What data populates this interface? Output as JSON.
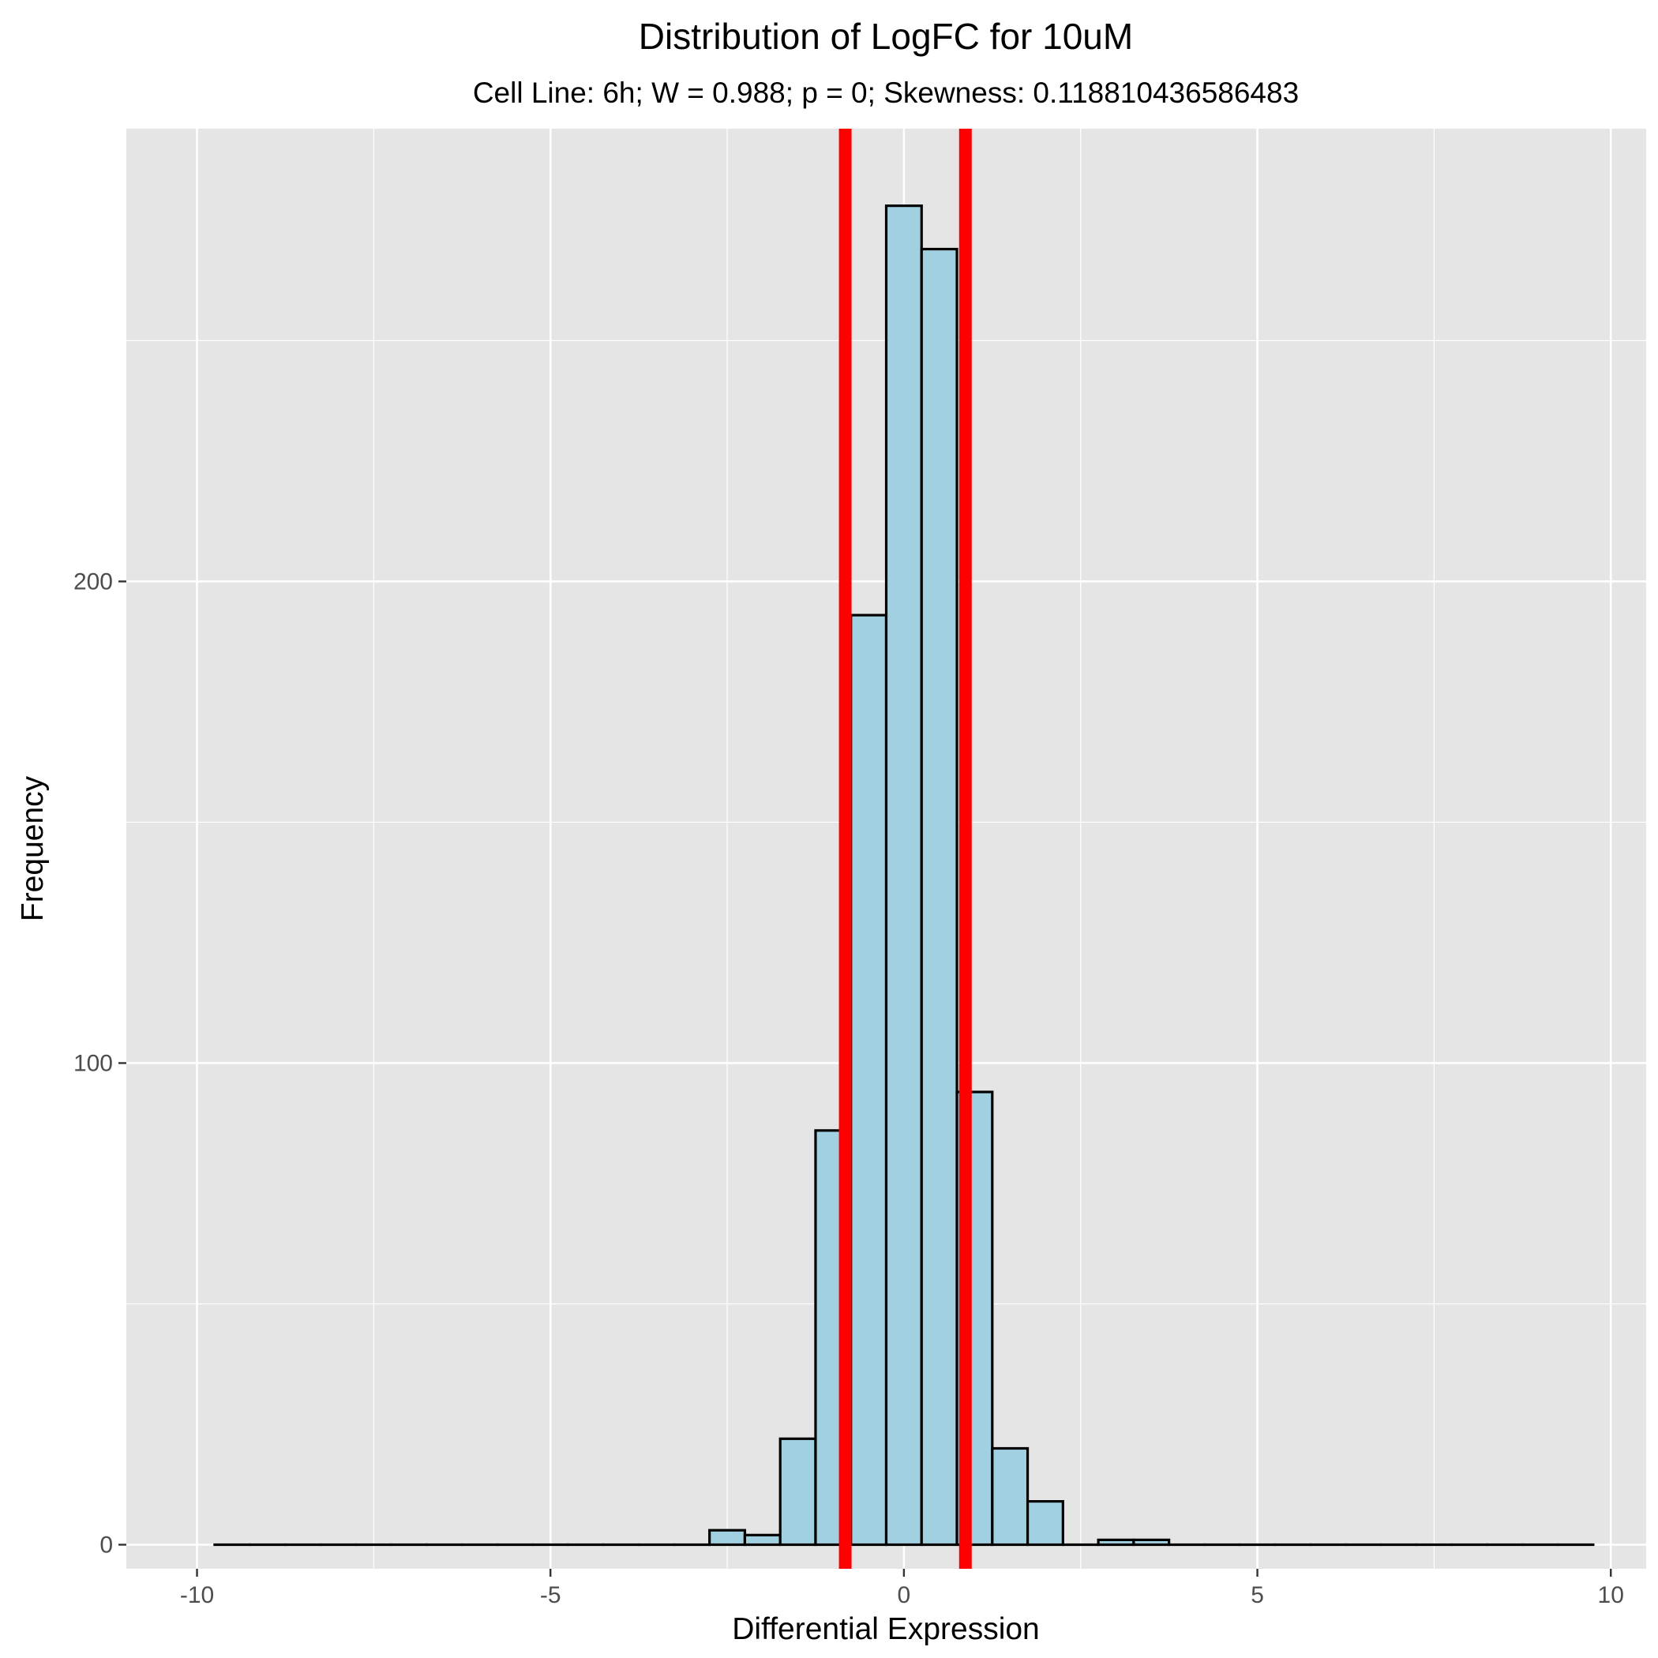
{
  "chart_data": {
    "type": "bar",
    "title": "Distribution of LogFC for 10uM",
    "subtitle": "Cell Line: 6h; W = 0.988; p = 0; Skewness: 0.118810436586483",
    "xlabel": "Differential Expression",
    "ylabel": "Frequency",
    "xlim": [
      -11,
      10.5
    ],
    "ylim": [
      -5,
      294
    ],
    "x_ticks": [
      -10,
      -5,
      0,
      5,
      10
    ],
    "x_tick_labels": [
      "-10",
      "-5",
      "0",
      "5",
      "10"
    ],
    "y_ticks": [
      0,
      100,
      200
    ],
    "y_tick_labels": [
      "0",
      "100",
      "200"
    ],
    "grid": true,
    "bin_width": 0.5,
    "bins": [
      {
        "x": -9.5,
        "count": 0
      },
      {
        "x": -9.0,
        "count": 0
      },
      {
        "x": -8.5,
        "count": 0
      },
      {
        "x": -8.0,
        "count": 0
      },
      {
        "x": -7.5,
        "count": 0
      },
      {
        "x": -7.0,
        "count": 0
      },
      {
        "x": -6.5,
        "count": 0
      },
      {
        "x": -6.0,
        "count": 0
      },
      {
        "x": -5.5,
        "count": 0
      },
      {
        "x": -5.0,
        "count": 0
      },
      {
        "x": -4.5,
        "count": 0
      },
      {
        "x": -4.0,
        "count": 0
      },
      {
        "x": -3.5,
        "count": 0
      },
      {
        "x": -3.0,
        "count": 0
      },
      {
        "x": -2.5,
        "count": 3
      },
      {
        "x": -2.0,
        "count": 2
      },
      {
        "x": -1.5,
        "count": 22
      },
      {
        "x": -1.0,
        "count": 86
      },
      {
        "x": -0.5,
        "count": 193
      },
      {
        "x": 0.0,
        "count": 278
      },
      {
        "x": 0.5,
        "count": 269
      },
      {
        "x": 1.0,
        "count": 94
      },
      {
        "x": 1.5,
        "count": 20
      },
      {
        "x": 2.0,
        "count": 9
      },
      {
        "x": 2.5,
        "count": 0
      },
      {
        "x": 3.0,
        "count": 1
      },
      {
        "x": 3.5,
        "count": 1
      },
      {
        "x": 4.0,
        "count": 0
      },
      {
        "x": 4.5,
        "count": 0
      },
      {
        "x": 5.0,
        "count": 0
      },
      {
        "x": 5.5,
        "count": 0
      },
      {
        "x": 6.0,
        "count": 0
      },
      {
        "x": 6.5,
        "count": 0
      },
      {
        "x": 7.0,
        "count": 0
      },
      {
        "x": 7.5,
        "count": 0
      },
      {
        "x": 8.0,
        "count": 0
      },
      {
        "x": 8.5,
        "count": 0
      },
      {
        "x": 9.0,
        "count": 0
      },
      {
        "x": 9.5,
        "count": 0
      }
    ],
    "threshold_lines": [
      -0.83,
      0.87
    ],
    "colors": {
      "bar_fill": "#a1d0e0",
      "bar_stroke": "#000000",
      "panel_background": "#e5e5e5",
      "grid": "#ffffff",
      "threshold_line": "#ff0000"
    }
  }
}
